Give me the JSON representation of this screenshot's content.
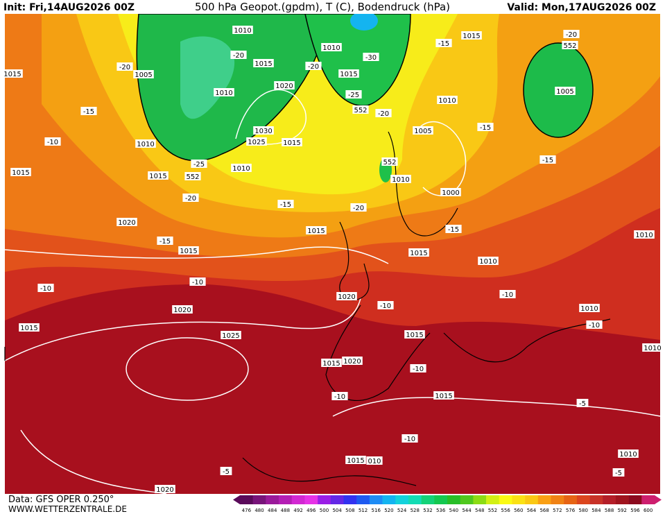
{
  "header": {
    "init": "Init: Fri,14AUG2026 00Z",
    "title": "500 hPa Geopot.(gpdm), T (C), Bodendruck (hPa)",
    "valid": "Valid: Mon,17AUG2026 00Z"
  },
  "footer": {
    "data_source": "Data: GFS OPER 0.250°",
    "website": "WWW.WETTERZENTRALE.DE"
  },
  "colorbar": [
    {
      "value": 476,
      "color": "#5a0a5a"
    },
    {
      "value": 480,
      "color": "#78147a"
    },
    {
      "value": 484,
      "color": "#9a1a9a"
    },
    {
      "value": 488,
      "color": "#b41eb4"
    },
    {
      "value": 492,
      "color": "#d228d2"
    },
    {
      "value": 496,
      "color": "#e632e6"
    },
    {
      "value": 500,
      "color": "#9a1ee6"
    },
    {
      "value": 504,
      "color": "#6428e6"
    },
    {
      "value": 508,
      "color": "#3232f0"
    },
    {
      "value": 512,
      "color": "#1e5af0"
    },
    {
      "value": 516,
      "color": "#1e8cf5"
    },
    {
      "value": 520,
      "color": "#14b4f0"
    },
    {
      "value": 524,
      "color": "#14d2dc"
    },
    {
      "value": 528,
      "color": "#14dcb4"
    },
    {
      "value": 532,
      "color": "#14d278"
    },
    {
      "value": 536,
      "color": "#14c850"
    },
    {
      "value": 540,
      "color": "#28be28"
    },
    {
      "value": 544,
      "color": "#50c81e"
    },
    {
      "value": 548,
      "color": "#8cdc14"
    },
    {
      "value": 552,
      "color": "#d2f014"
    },
    {
      "value": 556,
      "color": "#fafa14"
    },
    {
      "value": 560,
      "color": "#fae114"
    },
    {
      "value": 564,
      "color": "#fac814"
    },
    {
      "value": 568,
      "color": "#faa014"
    },
    {
      "value": 572,
      "color": "#f08214"
    },
    {
      "value": 576,
      "color": "#e66414"
    },
    {
      "value": 580,
      "color": "#dc461e"
    },
    {
      "value": 584,
      "color": "#c83228"
    },
    {
      "value": 588,
      "color": "#b41e28"
    },
    {
      "value": 592,
      "color": "#a0141e"
    },
    {
      "value": 596,
      "color": "#8c0a1e"
    },
    {
      "value": 600,
      "color": "#cd1e6e"
    }
  ],
  "contour_labels": [
    "1010",
    "1010",
    "1015",
    "-15",
    "-20",
    "552",
    "1015",
    "-20",
    "1005",
    "-20",
    "1015",
    "-20",
    "-30",
    "1015",
    "1020",
    "1010",
    "-25",
    "552",
    "-20",
    "1010",
    "1005",
    "-15",
    "1030",
    "1025",
    "1015",
    "1005",
    "-15",
    "1010",
    "-10",
    "-25",
    "1010",
    "552",
    "1010",
    "-15",
    "1015",
    "1015",
    "552",
    "1000",
    "-20",
    "-15",
    "-20",
    "1020",
    "1015",
    "-15",
    "-15",
    "1015",
    "1015",
    "1010",
    "1010",
    "-10",
    "-10",
    "1020",
    "-10",
    "-10",
    "1010",
    "1020",
    "-10",
    "1015",
    "1025",
    "1015",
    "1010",
    "1020",
    "1015",
    "-10",
    "-10",
    "1015",
    "-5",
    "-10",
    "1015",
    "010",
    "1010",
    "-5",
    "-5",
    "1020"
  ]
}
